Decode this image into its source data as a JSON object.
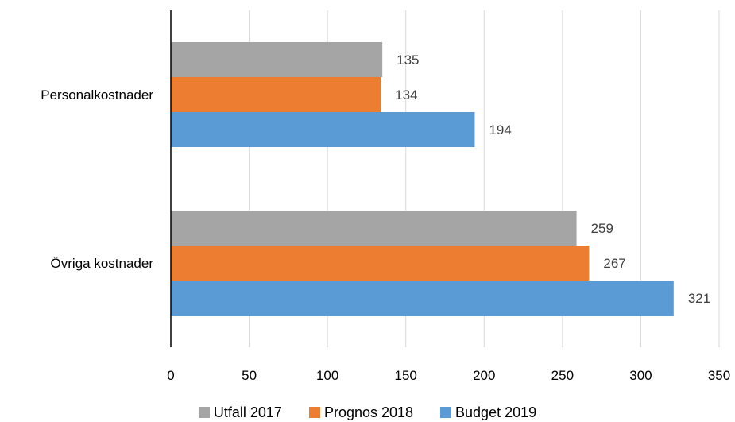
{
  "chart_data": {
    "type": "bar",
    "orientation": "horizontal",
    "categories": [
      "Personalkostnader",
      "Övriga kostnader"
    ],
    "series": [
      {
        "name": "Utfall 2017",
        "color": "#a5a5a5",
        "values": [
          135,
          259
        ]
      },
      {
        "name": "Prognos 2018",
        "color": "#ed7d31",
        "values": [
          134,
          267
        ]
      },
      {
        "name": "Budget 2019",
        "color": "#5b9bd5",
        "values": [
          194,
          321
        ]
      }
    ],
    "xlim": [
      0,
      350
    ],
    "xticks": [
      0,
      50,
      100,
      150,
      200,
      250,
      300,
      350
    ],
    "xtick_labels": [
      "0",
      "50",
      "100",
      "150",
      "200",
      "250",
      "300",
      "350"
    ],
    "title": "",
    "xlabel": "",
    "ylabel": "",
    "grid": "vertical",
    "legend_position": "bottom"
  }
}
